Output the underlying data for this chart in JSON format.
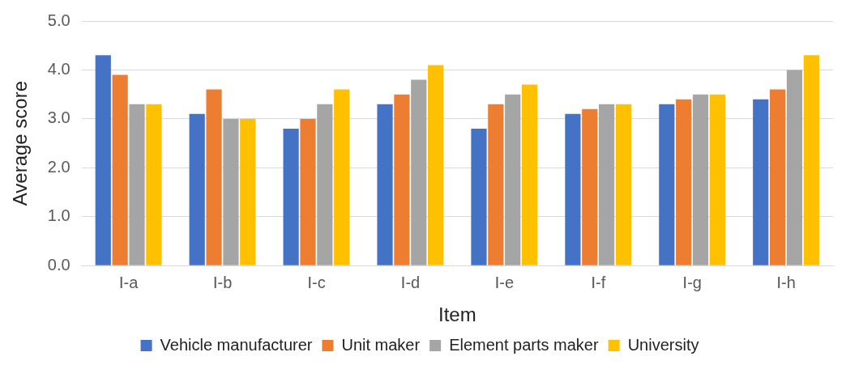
{
  "chart_data": {
    "type": "bar",
    "xlabel": "Item",
    "ylabel": "Average score",
    "categories": [
      "Ⅰ-a",
      "Ⅰ-b",
      "Ⅰ-c",
      "Ⅰ-d",
      "Ⅰ-e",
      "Ⅰ-f",
      "Ⅰ-g",
      "Ⅰ-h"
    ],
    "series": [
      {
        "name": "Vehicle manufacturer",
        "color": "#4472c4",
        "values": [
          4.3,
          3.1,
          2.8,
          3.3,
          2.8,
          3.1,
          3.3,
          3.4
        ]
      },
      {
        "name": "Unit maker",
        "color": "#ed7d31",
        "values": [
          3.9,
          3.6,
          3.0,
          3.5,
          3.3,
          3.2,
          3.4,
          3.6
        ]
      },
      {
        "name": "Element parts maker",
        "color": "#a5a5a5",
        "values": [
          3.3,
          3.0,
          3.3,
          3.8,
          3.5,
          3.3,
          3.5,
          4.0
        ]
      },
      {
        "name": "University",
        "color": "#ffc000",
        "values": [
          3.3,
          3.0,
          3.6,
          4.1,
          3.7,
          3.3,
          3.5,
          4.3
        ]
      }
    ],
    "ylim": [
      0,
      5
    ],
    "yticks": [
      {
        "value": 0,
        "label": "0.0"
      },
      {
        "value": 1,
        "label": "1.0"
      },
      {
        "value": 2,
        "label": "2.0"
      },
      {
        "value": 3,
        "label": "3.0"
      },
      {
        "value": 4,
        "label": "4.0"
      },
      {
        "value": 5,
        "label": "5.0"
      }
    ],
    "grid": "y",
    "legend": "bottom"
  }
}
